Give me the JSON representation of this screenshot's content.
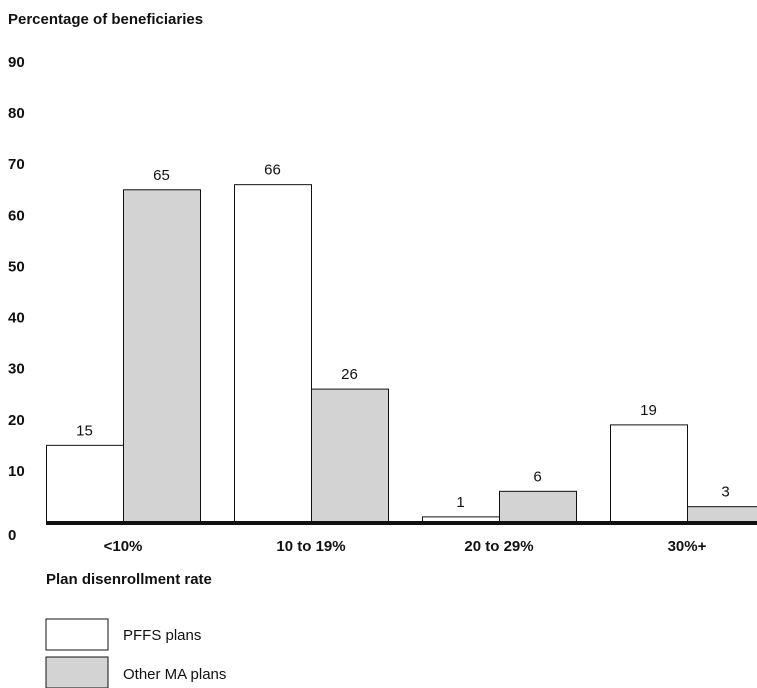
{
  "chart_data": {
    "type": "bar",
    "ylabel": "Percentage of  beneficiaries",
    "xlabel": "Plan disenrollment rate",
    "categories": [
      "<10%",
      "10 to 19%",
      "20 to 29%",
      "30%+"
    ],
    "ylim": [
      0,
      90
    ],
    "yticks": [
      "0",
      "10",
      "20",
      "30",
      "40",
      "50",
      "60",
      "70",
      "80",
      "90"
    ],
    "grid": false,
    "legend_placement": "bottom-left",
    "series": [
      {
        "name": "PFFS plans",
        "values": [
          15,
          66,
          1,
          19
        ],
        "labels": [
          "15",
          "66",
          "1",
          "19"
        ],
        "color": "#ffffff"
      },
      {
        "name": "Other MA plans",
        "values": [
          65,
          26,
          6,
          3
        ],
        "labels": [
          "65",
          "26",
          "6",
          "3"
        ],
        "color": "#d3d3d3"
      }
    ]
  }
}
